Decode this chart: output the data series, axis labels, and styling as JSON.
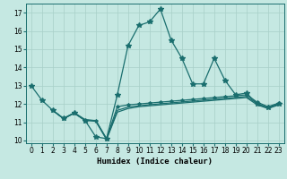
{
  "xlabel": "Humidex (Indice chaleur)",
  "bg_color": "#c5e8e2",
  "grid_color": "#a8cfc8",
  "line_color": "#1a6e6e",
  "xlim": [
    -0.5,
    23.5
  ],
  "ylim": [
    9.85,
    17.5
  ],
  "yticks": [
    10,
    11,
    12,
    13,
    14,
    15,
    16,
    17
  ],
  "xticks": [
    0,
    1,
    2,
    3,
    4,
    5,
    6,
    7,
    8,
    9,
    10,
    11,
    12,
    13,
    14,
    15,
    16,
    17,
    18,
    19,
    20,
    21,
    22,
    23
  ],
  "line1_x": [
    0,
    1,
    2,
    3,
    4,
    5,
    6,
    7,
    8,
    9,
    10,
    11,
    12,
    13,
    14,
    15,
    16,
    17,
    18,
    19,
    20,
    21,
    22,
    23
  ],
  "line1_y": [
    13.0,
    12.2,
    11.65,
    11.2,
    11.5,
    11.1,
    10.2,
    10.1,
    12.5,
    15.2,
    16.3,
    16.5,
    17.2,
    15.5,
    14.5,
    13.1,
    13.1,
    14.5,
    13.3,
    12.5,
    12.6,
    12.0,
    11.8,
    12.0
  ],
  "line2_x": [
    2,
    3,
    4,
    5,
    6,
    7,
    8,
    9,
    10,
    11,
    12,
    13,
    14,
    15,
    16,
    17,
    18,
    19,
    20,
    21,
    22,
    23
  ],
  "line2_y": [
    11.65,
    11.2,
    11.5,
    11.1,
    11.1,
    10.1,
    11.85,
    11.95,
    12.0,
    12.05,
    12.1,
    12.15,
    12.2,
    12.25,
    12.3,
    12.35,
    12.4,
    12.45,
    12.5,
    12.1,
    11.85,
    12.05
  ],
  "line3_x": [
    2,
    3,
    4,
    5,
    6,
    7,
    8,
    9,
    10,
    11,
    12,
    13,
    14,
    15,
    16,
    17,
    18,
    19,
    20,
    21,
    22,
    23
  ],
  "line3_y": [
    11.65,
    11.2,
    11.5,
    11.1,
    11.05,
    10.05,
    11.55,
    11.75,
    11.85,
    11.9,
    11.95,
    12.0,
    12.05,
    12.1,
    12.15,
    12.2,
    12.25,
    12.3,
    12.35,
    11.95,
    11.75,
    11.95
  ],
  "line4_x": [
    2,
    3,
    4,
    5,
    6,
    7,
    8,
    9,
    10,
    11,
    12,
    13,
    14,
    15,
    16,
    17,
    18,
    19,
    20,
    21,
    22,
    23
  ],
  "line4_y": [
    11.65,
    11.2,
    11.52,
    11.15,
    11.08,
    10.08,
    11.65,
    11.83,
    11.9,
    11.96,
    12.01,
    12.06,
    12.11,
    12.16,
    12.21,
    12.26,
    12.31,
    12.36,
    12.41,
    12.02,
    11.79,
    11.99
  ]
}
